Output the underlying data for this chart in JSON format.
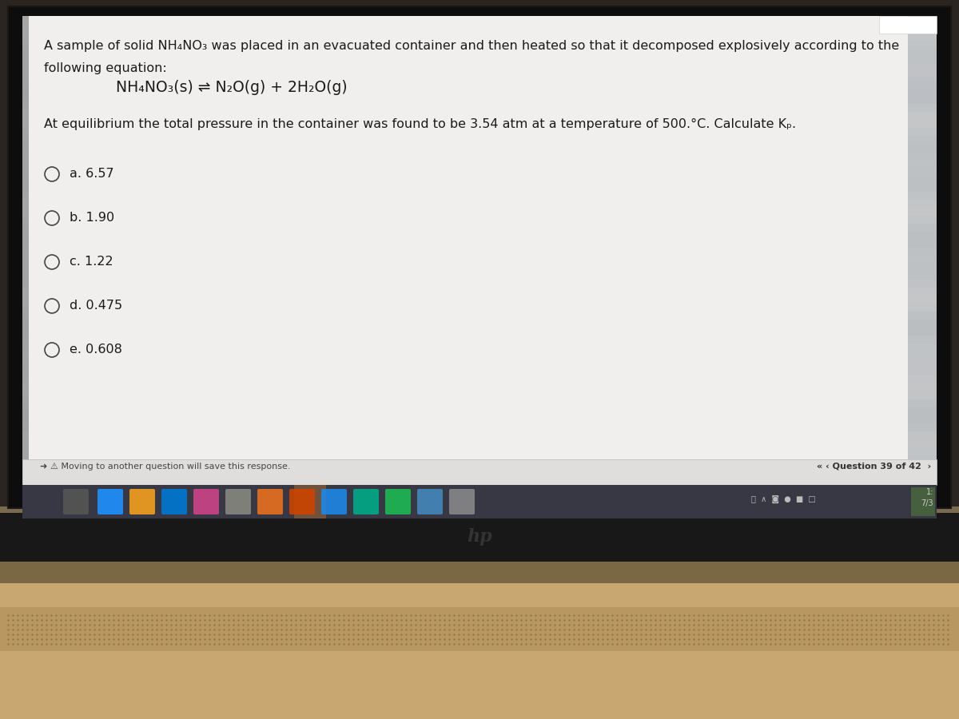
{
  "line1": "A sample of solid NH₄NO₃ was placed in an evacuated container and then heated so that it decomposed explosively according to the",
  "line2": "following equation:",
  "equation": "NH₄NO₃(s) ⇌ N₂O(g) + 2H₂O(g)",
  "line3": "At equilibrium the total pressure in the container was found to be 3.54 atm at a temperature of 500.°C. Calculate Kₚ.",
  "options": [
    "a. 6.57",
    "b. 1.90",
    "c. 1.22",
    "d. 0.475",
    "e. 0.608"
  ],
  "footer_left": "➜ ⚠ Moving to another question will save this response.",
  "footer_right": "« ‹ Question 39 of 42  ›",
  "screen_bg": [
    0.76,
    0.77,
    0.78
  ],
  "content_bg": [
    0.94,
    0.94,
    0.93
  ],
  "laptop_dark": "#1c1c1c",
  "laptop_silver": "#8a7a60",
  "desk_top": "#9a8060",
  "desk_body": "#c8a870",
  "desk_speaker": "#a89060",
  "bezel_color": "#0a0a0a",
  "taskbar_color": "#3a3a4a"
}
